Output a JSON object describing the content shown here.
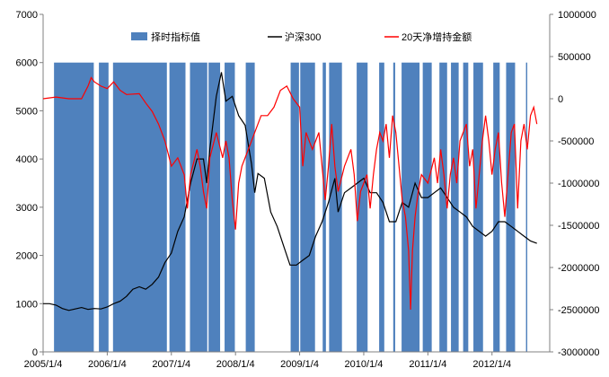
{
  "chart_data": {
    "type": "line",
    "title": "",
    "x_tick_labels": [
      "2005/1/4",
      "2006/1/4",
      "2007/1/4",
      "2008/1/4",
      "2009/1/4",
      "2010/1/4",
      "2011/1/4",
      "2012/1/4"
    ],
    "y_left": {
      "range": [
        0,
        7000
      ],
      "ticks": [
        "0",
        "1000",
        "2000",
        "3000",
        "4000",
        "5000",
        "6000",
        "7000"
      ]
    },
    "y_right": {
      "range": [
        -3000000,
        1000000
      ],
      "ticks": [
        "-3000000",
        "-2500000",
        "-2000000",
        "-1500000",
        "-1000000",
        "-500000",
        "0",
        "500000",
        "1000000"
      ]
    },
    "legend_position": "top",
    "colors": {
      "signal": "#4f81bd",
      "hs300": "#000000",
      "netflow": "#ff0000"
    },
    "series": [
      {
        "name": "择时指标值",
        "kind": "area",
        "axis": "left",
        "description_value": 6000,
        "intervals": [
          [
            2005.17,
            2005.79
          ],
          [
            2005.87,
            2006.02
          ],
          [
            2006.09,
            2006.93
          ],
          [
            2006.97,
            2007.22
          ],
          [
            2007.29,
            2007.56
          ],
          [
            2007.58,
            2007.76
          ],
          [
            2007.83,
            2007.99
          ],
          [
            2008.16,
            2008.3
          ],
          [
            2008.86,
            2008.99
          ],
          [
            2009.01,
            2009.24
          ],
          [
            2009.36,
            2009.41
          ],
          [
            2009.46,
            2009.66
          ],
          [
            2009.89,
            2010.06
          ],
          [
            2010.24,
            2010.32
          ],
          [
            2010.46,
            2010.49
          ],
          [
            2010.59,
            2010.87
          ],
          [
            2010.92,
            2011.06
          ],
          [
            2011.18,
            2011.3
          ],
          [
            2011.36,
            2011.48
          ],
          [
            2011.55,
            2011.63
          ],
          [
            2011.71,
            2011.86
          ],
          [
            2012.02,
            2012.12
          ],
          [
            2012.22,
            2012.36
          ],
          [
            2012.53,
            2012.55
          ]
        ]
      },
      {
        "name": "沪深300",
        "kind": "line",
        "axis": "left",
        "points": [
          [
            2005.0,
            1000
          ],
          [
            2005.1,
            1000
          ],
          [
            2005.2,
            970
          ],
          [
            2005.3,
            900
          ],
          [
            2005.4,
            860
          ],
          [
            2005.5,
            890
          ],
          [
            2005.6,
            920
          ],
          [
            2005.7,
            880
          ],
          [
            2005.8,
            900
          ],
          [
            2005.9,
            890
          ],
          [
            2006.0,
            930
          ],
          [
            2006.1,
            1000
          ],
          [
            2006.2,
            1050
          ],
          [
            2006.3,
            1150
          ],
          [
            2006.4,
            1300
          ],
          [
            2006.5,
            1350
          ],
          [
            2006.6,
            1300
          ],
          [
            2006.7,
            1400
          ],
          [
            2006.8,
            1550
          ],
          [
            2006.9,
            1850
          ],
          [
            2007.0,
            2050
          ],
          [
            2007.1,
            2500
          ],
          [
            2007.2,
            2800
          ],
          [
            2007.3,
            3500
          ],
          [
            2007.4,
            4000
          ],
          [
            2007.5,
            4000
          ],
          [
            2007.55,
            3500
          ],
          [
            2007.6,
            4200
          ],
          [
            2007.7,
            5300
          ],
          [
            2007.78,
            5800
          ],
          [
            2007.85,
            5200
          ],
          [
            2007.95,
            5300
          ],
          [
            2008.05,
            4900
          ],
          [
            2008.15,
            4700
          ],
          [
            2008.25,
            3900
          ],
          [
            2008.3,
            3300
          ],
          [
            2008.35,
            3700
          ],
          [
            2008.45,
            3600
          ],
          [
            2008.55,
            2900
          ],
          [
            2008.65,
            2600
          ],
          [
            2008.75,
            2200
          ],
          [
            2008.85,
            1800
          ],
          [
            2008.95,
            1800
          ],
          [
            2009.05,
            1900
          ],
          [
            2009.15,
            2000
          ],
          [
            2009.25,
            2400
          ],
          [
            2009.35,
            2700
          ],
          [
            2009.45,
            3100
          ],
          [
            2009.55,
            3600
          ],
          [
            2009.6,
            2900
          ],
          [
            2009.7,
            3300
          ],
          [
            2009.8,
            3400
          ],
          [
            2009.9,
            3500
          ],
          [
            2010.0,
            3600
          ],
          [
            2010.1,
            3300
          ],
          [
            2010.2,
            3300
          ],
          [
            2010.3,
            3100
          ],
          [
            2010.4,
            2700
          ],
          [
            2010.5,
            2700
          ],
          [
            2010.6,
            3100
          ],
          [
            2010.7,
            3000
          ],
          [
            2010.8,
            3500
          ],
          [
            2010.9,
            3200
          ],
          [
            2011.0,
            3200
          ],
          [
            2011.1,
            3300
          ],
          [
            2011.2,
            3400
          ],
          [
            2011.3,
            3200
          ],
          [
            2011.4,
            3000
          ],
          [
            2011.5,
            2900
          ],
          [
            2011.6,
            2800
          ],
          [
            2011.7,
            2600
          ],
          [
            2011.8,
            2500
          ],
          [
            2011.9,
            2400
          ],
          [
            2012.0,
            2500
          ],
          [
            2012.1,
            2700
          ],
          [
            2012.2,
            2700
          ],
          [
            2012.3,
            2600
          ],
          [
            2012.4,
            2500
          ],
          [
            2012.5,
            2400
          ],
          [
            2012.6,
            2300
          ],
          [
            2012.7,
            2250
          ]
        ]
      },
      {
        "name": "20天净增持金额",
        "kind": "line",
        "axis": "right",
        "points": [
          [
            2005.0,
            0
          ],
          [
            2005.2,
            20000
          ],
          [
            2005.4,
            0
          ],
          [
            2005.6,
            0
          ],
          [
            2005.7,
            150000
          ],
          [
            2005.75,
            250000
          ],
          [
            2005.8,
            200000
          ],
          [
            2005.9,
            150000
          ],
          [
            2006.0,
            120000
          ],
          [
            2006.1,
            200000
          ],
          [
            2006.2,
            100000
          ],
          [
            2006.3,
            50000
          ],
          [
            2006.5,
            60000
          ],
          [
            2006.6,
            -50000
          ],
          [
            2006.7,
            -150000
          ],
          [
            2006.8,
            -300000
          ],
          [
            2006.9,
            -500000
          ],
          [
            2007.0,
            -800000
          ],
          [
            2007.1,
            -700000
          ],
          [
            2007.2,
            -900000
          ],
          [
            2007.25,
            -1300000
          ],
          [
            2007.3,
            -900000
          ],
          [
            2007.4,
            -600000
          ],
          [
            2007.45,
            -800000
          ],
          [
            2007.5,
            -1100000
          ],
          [
            2007.55,
            -1300000
          ],
          [
            2007.6,
            -700000
          ],
          [
            2007.7,
            -400000
          ],
          [
            2007.8,
            -700000
          ],
          [
            2007.85,
            -500000
          ],
          [
            2007.9,
            -700000
          ],
          [
            2007.95,
            -1200000
          ],
          [
            2008.0,
            -1550000
          ],
          [
            2008.05,
            -1000000
          ],
          [
            2008.1,
            -800000
          ],
          [
            2008.2,
            -600000
          ],
          [
            2008.3,
            -400000
          ],
          [
            2008.4,
            -200000
          ],
          [
            2008.5,
            -200000
          ],
          [
            2008.6,
            -100000
          ],
          [
            2008.7,
            100000
          ],
          [
            2008.8,
            150000
          ],
          [
            2008.9,
            0
          ],
          [
            2009.0,
            -100000
          ],
          [
            2009.05,
            -800000
          ],
          [
            2009.1,
            -400000
          ],
          [
            2009.2,
            -600000
          ],
          [
            2009.3,
            -400000
          ],
          [
            2009.4,
            -1200000
          ],
          [
            2009.45,
            -800000
          ],
          [
            2009.5,
            -300000
          ],
          [
            2009.55,
            -800000
          ],
          [
            2009.6,
            -1100000
          ],
          [
            2009.7,
            -800000
          ],
          [
            2009.8,
            -600000
          ],
          [
            2009.85,
            -900000
          ],
          [
            2009.9,
            -1450000
          ],
          [
            2009.95,
            -1100000
          ],
          [
            2010.0,
            -1000000
          ],
          [
            2010.05,
            -900000
          ],
          [
            2010.1,
            -1300000
          ],
          [
            2010.15,
            -900000
          ],
          [
            2010.2,
            -600000
          ],
          [
            2010.25,
            -400000
          ],
          [
            2010.3,
            -500000
          ],
          [
            2010.35,
            -300000
          ],
          [
            2010.4,
            -700000
          ],
          [
            2010.45,
            -200000
          ],
          [
            2010.5,
            -400000
          ],
          [
            2010.6,
            -1200000
          ],
          [
            2010.65,
            -1400000
          ],
          [
            2010.7,
            -1800000
          ],
          [
            2010.73,
            -2500000
          ],
          [
            2010.76,
            -1800000
          ],
          [
            2010.8,
            -1400000
          ],
          [
            2010.85,
            -1100000
          ],
          [
            2010.9,
            -900000
          ],
          [
            2011.0,
            -1000000
          ],
          [
            2011.1,
            -700000
          ],
          [
            2011.15,
            -1000000
          ],
          [
            2011.2,
            -600000
          ],
          [
            2011.25,
            -900000
          ],
          [
            2011.3,
            -1300000
          ],
          [
            2011.35,
            -900000
          ],
          [
            2011.4,
            -700000
          ],
          [
            2011.45,
            -1000000
          ],
          [
            2011.5,
            -500000
          ],
          [
            2011.6,
            -300000
          ],
          [
            2011.65,
            -800000
          ],
          [
            2011.7,
            -600000
          ],
          [
            2011.75,
            -1300000
          ],
          [
            2011.8,
            -900000
          ],
          [
            2011.85,
            -500000
          ],
          [
            2011.9,
            -200000
          ],
          [
            2011.95,
            -500000
          ],
          [
            2012.0,
            -900000
          ],
          [
            2012.05,
            -600000
          ],
          [
            2012.1,
            -400000
          ],
          [
            2012.15,
            -1000000
          ],
          [
            2012.2,
            -1400000
          ],
          [
            2012.25,
            -900000
          ],
          [
            2012.3,
            -400000
          ],
          [
            2012.35,
            -300000
          ],
          [
            2012.4,
            -1300000
          ],
          [
            2012.45,
            -500000
          ],
          [
            2012.5,
            -300000
          ],
          [
            2012.55,
            -600000
          ],
          [
            2012.6,
            -200000
          ],
          [
            2012.65,
            -100000
          ],
          [
            2012.7,
            -300000
          ]
        ]
      }
    ]
  }
}
